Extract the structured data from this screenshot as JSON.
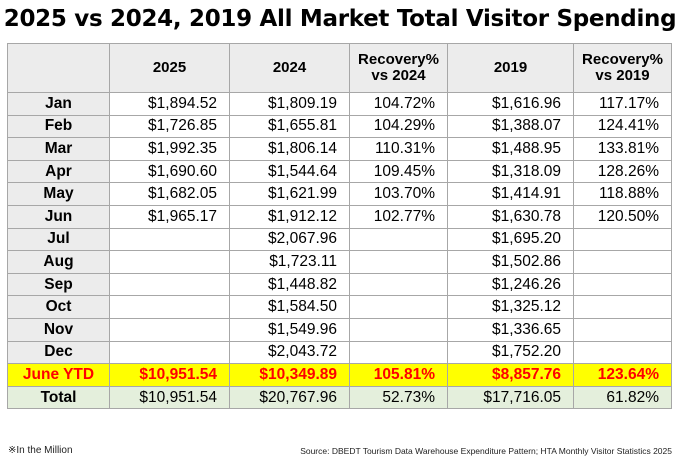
{
  "title": "2025 vs 2024, 2019 All Market Total Visitor Spending",
  "headers": [
    "",
    "2025",
    "2024",
    "Recovery%\nvs 2024",
    "2019",
    "Recovery%\nvs 2019"
  ],
  "rows": [
    {
      "month": "Jan",
      "v2025": "$1,894.52",
      "v2024": "$1,809.19",
      "r2024": "104.72%",
      "v2019": "$1,616.96",
      "r2019": "117.17%"
    },
    {
      "month": "Feb",
      "v2025": "$1,726.85",
      "v2024": "$1,655.81",
      "r2024": "104.29%",
      "v2019": "$1,388.07",
      "r2019": "124.41%"
    },
    {
      "month": "Mar",
      "v2025": "$1,992.35",
      "v2024": "$1,806.14",
      "r2024": "110.31%",
      "v2019": "$1,488.95",
      "r2019": "133.81%"
    },
    {
      "month": "Apr",
      "v2025": "$1,690.60",
      "v2024": "$1,544.64",
      "r2024": "109.45%",
      "v2019": "$1,318.09",
      "r2019": "128.26%"
    },
    {
      "month": "May",
      "v2025": "$1,682.05",
      "v2024": "$1,621.99",
      "r2024": "103.70%",
      "v2019": "$1,414.91",
      "r2019": "118.88%"
    },
    {
      "month": "Jun",
      "v2025": "$1,965.17",
      "v2024": "$1,912.12",
      "r2024": "102.77%",
      "v2019": "$1,630.78",
      "r2019": "120.50%"
    },
    {
      "month": "Jul",
      "v2025": "",
      "v2024": "$2,067.96",
      "r2024": "",
      "v2019": "$1,695.20",
      "r2019": ""
    },
    {
      "month": "Aug",
      "v2025": "",
      "v2024": "$1,723.11",
      "r2024": "",
      "v2019": "$1,502.86",
      "r2019": ""
    },
    {
      "month": "Sep",
      "v2025": "",
      "v2024": "$1,448.82",
      "r2024": "",
      "v2019": "$1,246.26",
      "r2019": ""
    },
    {
      "month": "Oct",
      "v2025": "",
      "v2024": "$1,584.50",
      "r2024": "",
      "v2019": "$1,325.12",
      "r2019": ""
    },
    {
      "month": "Nov",
      "v2025": "",
      "v2024": "$1,549.96",
      "r2024": "",
      "v2019": "$1,336.65",
      "r2019": ""
    },
    {
      "month": "Dec",
      "v2025": "",
      "v2024": "$2,043.72",
      "r2024": "",
      "v2019": "$1,752.20",
      "r2019": ""
    }
  ],
  "ytd": {
    "month": "June YTD",
    "v2025": "$10,951.54",
    "v2024": "$10,349.89",
    "r2024": "105.81%",
    "v2019": "$8,857.76",
    "r2019": "123.64%"
  },
  "total": {
    "month": "Total",
    "v2025": "$10,951.54",
    "v2024": "$20,767.96",
    "r2024": "52.73%",
    "v2019": "$17,716.05",
    "r2019": "61.82%"
  },
  "footnote": "※In the Million",
  "source": "Source: DBEDT Tourism Data Warehouse Expenditure Pattern; HTA Monthly Visitor Statistics 2025",
  "colors": {
    "header_bg": "#ececec",
    "ytd_bg": "#ffff00",
    "ytd_text": "#ff0000",
    "total_bg": "#e4efdc",
    "border": "#a7a7a7"
  }
}
